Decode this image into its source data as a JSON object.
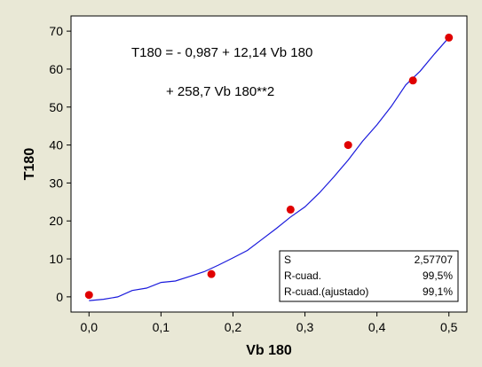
{
  "chart_data": {
    "type": "scatter",
    "title": "",
    "xlabel": "Vb 180",
    "ylabel": "T180",
    "xlim": [
      -0.025,
      0.525
    ],
    "ylim": [
      -4,
      74
    ],
    "x_ticks": [
      0.0,
      0.1,
      0.2,
      0.3,
      0.4,
      0.5
    ],
    "x_tick_labels": [
      "0,0",
      "0,1",
      "0,2",
      "0,3",
      "0,4",
      "0,5"
    ],
    "y_ticks": [
      0,
      10,
      20,
      30,
      40,
      50,
      60,
      70
    ],
    "y_tick_labels": [
      "0",
      "10",
      "20",
      "30",
      "40",
      "50",
      "60",
      "70"
    ],
    "grid": false,
    "series": [
      {
        "type": "scatter",
        "color": "#e00000",
        "x": [
          0.0,
          0.17,
          0.28,
          0.36,
          0.45,
          0.5
        ],
        "y": [
          0.5,
          6.0,
          23.0,
          40.0,
          57.0,
          68.3
        ]
      },
      {
        "type": "line",
        "color": "#1a1adc",
        "fit": {
          "b0": -0.987,
          "b1": 12.14,
          "b2": 258.7
        },
        "x": [
          0.0,
          0.02,
          0.04,
          0.06,
          0.08,
          0.1,
          0.12,
          0.14,
          0.16,
          0.18,
          0.2,
          0.22,
          0.24,
          0.26,
          0.28,
          0.3,
          0.32,
          0.34,
          0.36,
          0.38,
          0.4,
          0.42,
          0.44,
          0.46,
          0.48,
          0.5
        ],
        "y": [
          -0.99,
          -0.64,
          0.0,
          1.68,
          2.3,
          3.81,
          4.18,
          5.39,
          6.63,
          8.37,
          10.26,
          12.24,
          15.1,
          17.97,
          21.03,
          23.69,
          27.38,
          31.6,
          36.03,
          40.99,
          45.31,
          50.2,
          55.83,
          59.45,
          64.0,
          68.33
        ]
      }
    ],
    "equation": {
      "line1": "T180 =  - 0,987 + 12,14 Vb 180",
      "line2": "+ 258,7 Vb 180**2"
    },
    "stats": [
      {
        "label": "S",
        "value": "2,57707"
      },
      {
        "label": "R-cuad.",
        "value": "99,5%"
      },
      {
        "label": "R-cuad.(ajustado)",
        "value": "99,1%"
      }
    ]
  }
}
